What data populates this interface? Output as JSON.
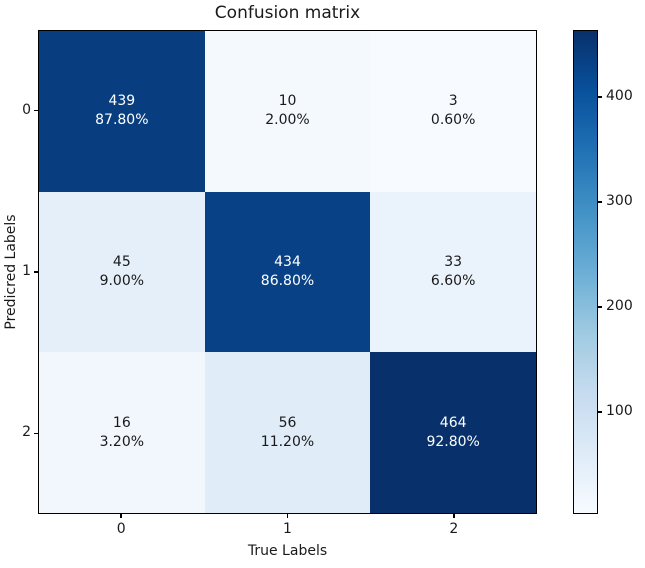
{
  "chart_data": {
    "type": "heatmap",
    "title": "Confusion matrix",
    "xlabel": "True Labels",
    "ylabel": "Predicred Labels",
    "x_tick_labels": [
      "0",
      "1",
      "2"
    ],
    "y_tick_labels": [
      "0",
      "1",
      "2"
    ],
    "counts": [
      [
        439,
        10,
        3
      ],
      [
        45,
        434,
        33
      ],
      [
        16,
        56,
        464
      ]
    ],
    "percents": [
      [
        "87.80%",
        "2.00%",
        "0.60%"
      ],
      [
        "9.00%",
        "86.80%",
        "6.60%"
      ],
      [
        "3.20%",
        "11.20%",
        "92.80%"
      ]
    ],
    "cell_colors": [
      [
        "#083e80",
        "#f4f9fe",
        "#f7fbff"
      ],
      [
        "#e5effa",
        "#084185",
        "#eaf2fb"
      ],
      [
        "#f1f7fd",
        "#e0ecf8",
        "#08306b"
      ]
    ],
    "cell_text_colors": [
      [
        "#ffffff",
        "#1a1a1a",
        "#1a1a1a"
      ],
      [
        "#1a1a1a",
        "#ffffff",
        "#1a1a1a"
      ],
      [
        "#1a1a1a",
        "#1a1a1a",
        "#ffffff"
      ]
    ],
    "colorbar": {
      "vmin": 3,
      "vmax": 464,
      "ticks": [
        100,
        200,
        300,
        400
      ],
      "gradient_stops_bottom_to_top": [
        "#f7fbff",
        "#deebf7",
        "#c6dbef",
        "#9ecae1",
        "#6baed6",
        "#4292c6",
        "#2171b5",
        "#08519c",
        "#08306b"
      ]
    }
  }
}
